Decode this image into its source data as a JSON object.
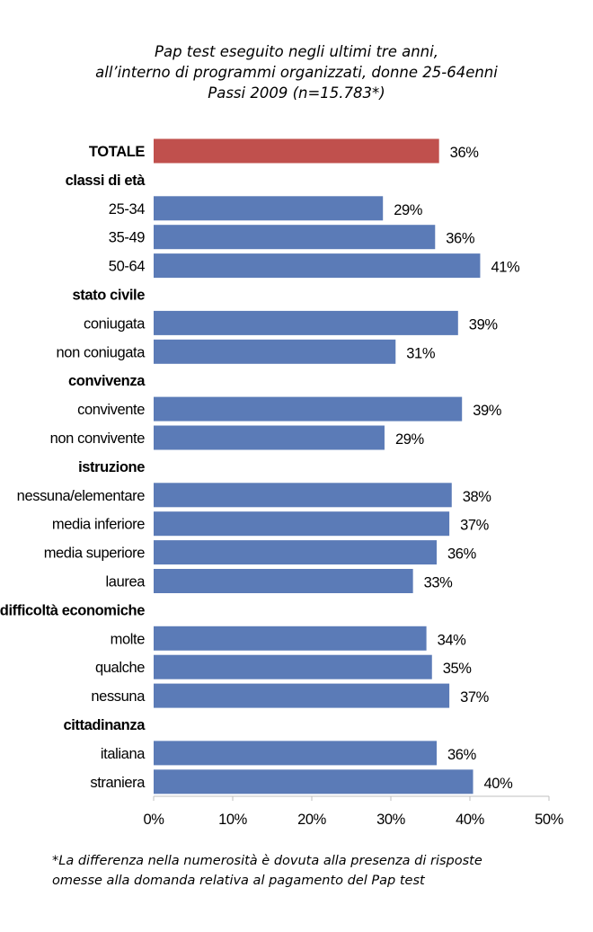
{
  "chart_data": {
    "type": "bar",
    "orientation": "horizontal",
    "title": [
      "Pap test eseguito negli ultimi tre anni,",
      "all’interno di programmi organizzati, donne 25-64enni",
      "Passi 2009 (n=15.783*)"
    ],
    "xlim": [
      0,
      50
    ],
    "xticks": [
      "0%",
      "10%",
      "20%",
      "30%",
      "40%",
      "50%"
    ],
    "colors": {
      "total": "#C0504D",
      "bars": "#5B7BB7",
      "axis": "#BFBFBF"
    },
    "rows": [
      {
        "label": "TOTALE",
        "type": "total",
        "value": 36.1,
        "data_label": "36%"
      },
      {
        "label": "classi di età",
        "type": "header"
      },
      {
        "label": "25-34",
        "type": "bar",
        "value": 29.0,
        "data_label": "29%"
      },
      {
        "label": "35-49",
        "type": "bar",
        "value": 35.6,
        "data_label": "36%"
      },
      {
        "label": "50-64",
        "type": "bar",
        "value": 41.3,
        "data_label": "41%"
      },
      {
        "label": "stato civile",
        "type": "header"
      },
      {
        "label": "coniugata",
        "type": "bar",
        "value": 38.5,
        "data_label": "39%"
      },
      {
        "label": "non coniugata",
        "type": "bar",
        "value": 30.6,
        "data_label": "31%"
      },
      {
        "label": "convivenza",
        "type": "header"
      },
      {
        "label": "convivente",
        "type": "bar",
        "value": 39.0,
        "data_label": "39%"
      },
      {
        "label": "non convivente",
        "type": "bar",
        "value": 29.2,
        "data_label": "29%"
      },
      {
        "label": "istruzione",
        "type": "header"
      },
      {
        "label": "nessuna/elementare",
        "type": "bar",
        "value": 37.7,
        "data_label": "38%"
      },
      {
        "label": "media inferiore",
        "type": "bar",
        "value": 37.4,
        "data_label": "37%"
      },
      {
        "label": "media superiore",
        "type": "bar",
        "value": 35.8,
        "data_label": "36%"
      },
      {
        "label": "laurea",
        "type": "bar",
        "value": 32.8,
        "data_label": "33%"
      },
      {
        "label": "difficoltà economiche",
        "type": "header"
      },
      {
        "label": "molte",
        "type": "bar",
        "value": 34.5,
        "data_label": "34%"
      },
      {
        "label": "qualche",
        "type": "bar",
        "value": 35.2,
        "data_label": "35%"
      },
      {
        "label": "nessuna",
        "type": "bar",
        "value": 37.4,
        "data_label": "37%"
      },
      {
        "label": "cittadinanza",
        "type": "header"
      },
      {
        "label": "italiana",
        "type": "bar",
        "value": 35.8,
        "data_label": "36%"
      },
      {
        "label": "straniera",
        "type": "bar",
        "value": 40.4,
        "data_label": "40%"
      }
    ],
    "footnote": [
      "*La differenza nella numerosità è dovuta alla presenza di risposte",
      "omesse alla domanda relativa al pagamento del Pap test"
    ]
  }
}
